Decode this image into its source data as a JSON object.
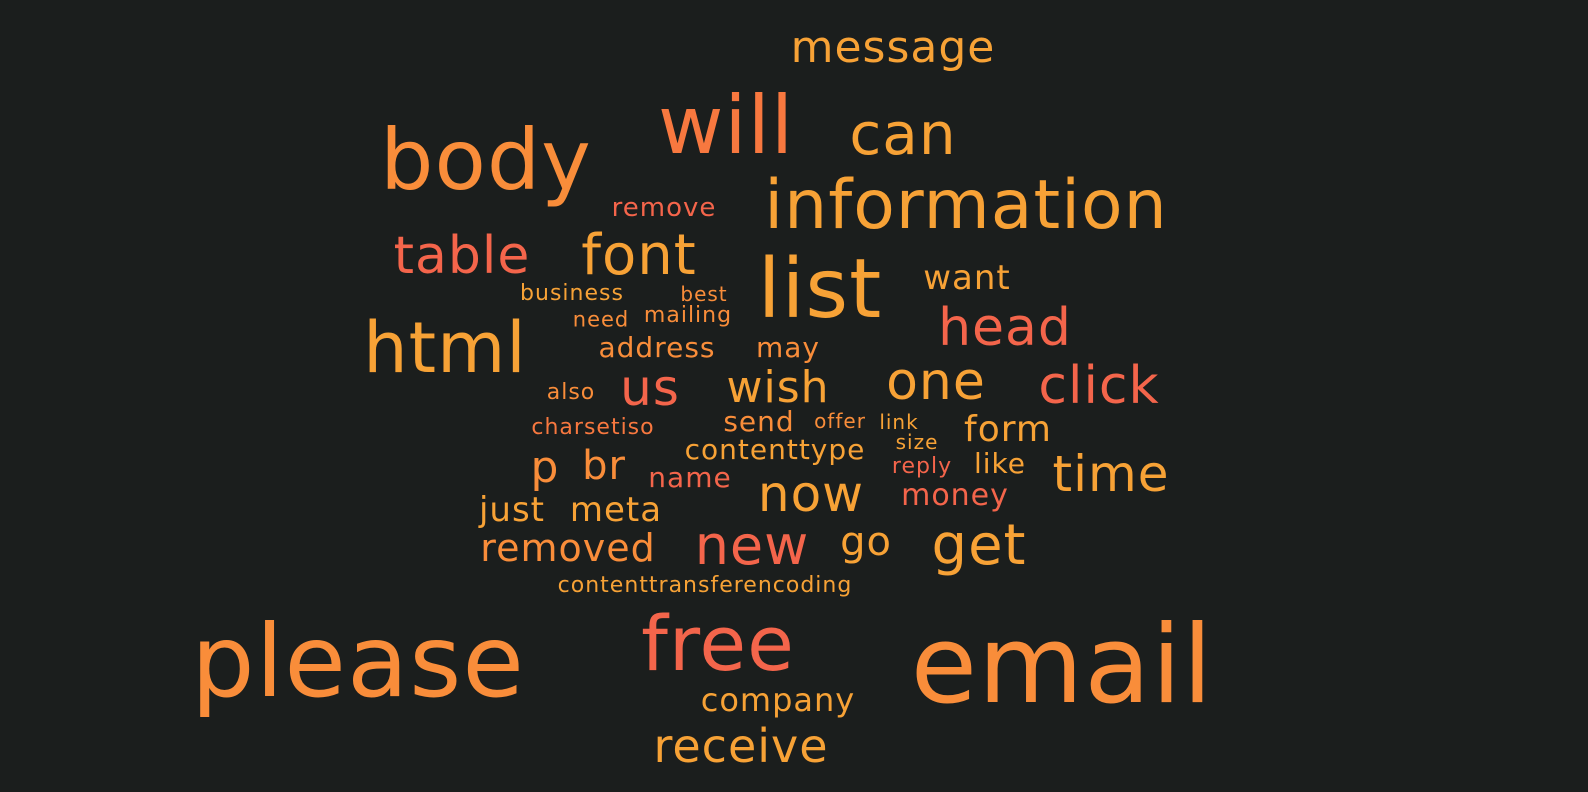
{
  "words": [
    {
      "text": "message",
      "color": "#f7a236"
    },
    {
      "text": "will",
      "color": "#f8783f"
    },
    {
      "text": "can",
      "color": "#f7a236"
    },
    {
      "text": "body",
      "color": "#f98d3a"
    },
    {
      "text": "information",
      "color": "#f7a236"
    },
    {
      "text": "remove",
      "color": "#f4654b"
    },
    {
      "text": "table",
      "color": "#f4654b"
    },
    {
      "text": "font",
      "color": "#f7a236"
    },
    {
      "text": "list",
      "color": "#f7a236"
    },
    {
      "text": "want",
      "color": "#f7a236"
    },
    {
      "text": "business",
      "color": "#f7a236"
    },
    {
      "text": "best",
      "color": "#f98d3a"
    },
    {
      "text": "need",
      "color": "#f98d3a"
    },
    {
      "text": "mailing",
      "color": "#f98d3a"
    },
    {
      "text": "head",
      "color": "#f4654b"
    },
    {
      "text": "html",
      "color": "#f7a236"
    },
    {
      "text": "address",
      "color": "#f98d3a"
    },
    {
      "text": "may",
      "color": "#f98d3a"
    },
    {
      "text": "also",
      "color": "#f98d3a"
    },
    {
      "text": "us",
      "color": "#f4654b"
    },
    {
      "text": "wish",
      "color": "#f7a236"
    },
    {
      "text": "one",
      "color": "#f7a236"
    },
    {
      "text": "click",
      "color": "#f4654b"
    },
    {
      "text": "charsetiso",
      "color": "#f8783f"
    },
    {
      "text": "send",
      "color": "#f98d3a"
    },
    {
      "text": "offer",
      "color": "#f98d3a"
    },
    {
      "text": "link",
      "color": "#f7a236"
    },
    {
      "text": "form",
      "color": "#f7a236"
    },
    {
      "text": "contenttype",
      "color": "#f7a236"
    },
    {
      "text": "size",
      "color": "#f7a236"
    },
    {
      "text": "p",
      "color": "#f98d3a"
    },
    {
      "text": "br",
      "color": "#f98d3a"
    },
    {
      "text": "name",
      "color": "#f4654b"
    },
    {
      "text": "reply",
      "color": "#f4654b"
    },
    {
      "text": "like",
      "color": "#f7a236"
    },
    {
      "text": "time",
      "color": "#f7a236"
    },
    {
      "text": "just",
      "color": "#f7a236"
    },
    {
      "text": "meta",
      "color": "#f7a236"
    },
    {
      "text": "now",
      "color": "#f7a236"
    },
    {
      "text": "money",
      "color": "#f4654b"
    },
    {
      "text": "removed",
      "color": "#f98d3a"
    },
    {
      "text": "new",
      "color": "#f4654b"
    },
    {
      "text": "go",
      "color": "#f7a236"
    },
    {
      "text": "get",
      "color": "#f7a236"
    },
    {
      "text": "contenttransferencoding",
      "color": "#f7a236"
    },
    {
      "text": "please",
      "color": "#f98d3a"
    },
    {
      "text": "free",
      "color": "#f4654b"
    },
    {
      "text": "email",
      "color": "#f98d3a"
    },
    {
      "text": "company",
      "color": "#f7a236"
    },
    {
      "text": "receive",
      "color": "#f7a236"
    }
  ]
}
